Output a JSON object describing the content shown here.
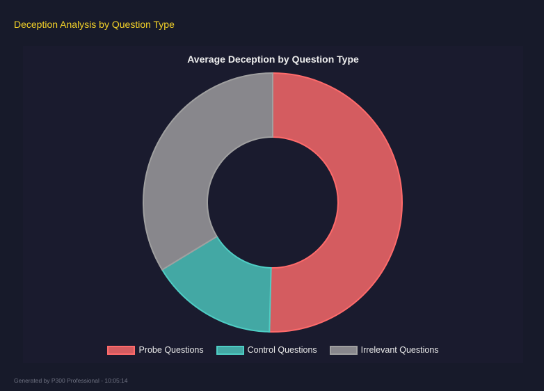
{
  "header": {
    "title": "Deception Analysis by Question Type"
  },
  "footer": {
    "text": "Generated by P300 Professional - 10:05:14"
  },
  "chart_data": {
    "type": "pie",
    "variant": "doughnut",
    "title": "Average Deception by Question Type",
    "categories": [
      "Probe Questions",
      "Control Questions",
      "Irrelevant Questions"
    ],
    "values": [
      50.4,
      15.9,
      33.7
    ],
    "colors": [
      "#d45c60",
      "#43a8a4",
      "#88878c"
    ],
    "border_colors": [
      "#ff6b6b",
      "#4ecdc4",
      "#a0a0a0"
    ],
    "legend_position": "bottom"
  }
}
